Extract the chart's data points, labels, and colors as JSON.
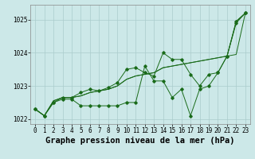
{
  "title": "Graphe pression niveau de la mer (hPa)",
  "background_color": "#cce8e8",
  "plot_bg_color": "#cce8e8",
  "grid_color": "#aacccc",
  "line_color": "#1a6b1a",
  "x_values": [
    0,
    1,
    2,
    3,
    4,
    5,
    6,
    7,
    8,
    9,
    10,
    11,
    12,
    13,
    14,
    15,
    16,
    17,
    18,
    19,
    20,
    21,
    22,
    23
  ],
  "line1": [
    1022.3,
    1022.1,
    1022.5,
    1022.6,
    1022.6,
    1022.4,
    1022.4,
    1022.4,
    1022.4,
    1022.4,
    1022.5,
    1022.5,
    1023.6,
    1023.15,
    1023.15,
    1022.65,
    1022.9,
    1022.1,
    1022.9,
    1023.0,
    1023.4,
    1023.9,
    1024.95,
    1025.2
  ],
  "line2": [
    1022.3,
    1022.1,
    1022.5,
    1022.65,
    1022.65,
    1022.8,
    1022.9,
    1022.85,
    1022.95,
    1023.1,
    1023.5,
    1023.55,
    1023.4,
    1023.3,
    1024.0,
    1023.8,
    1023.8,
    1023.35,
    1023.0,
    1023.35,
    1023.4,
    1023.9,
    1024.9,
    1025.2
  ],
  "line3": [
    1022.3,
    1022.1,
    1022.55,
    1022.65,
    1022.65,
    1022.7,
    1022.8,
    1022.85,
    1022.9,
    1023.0,
    1023.2,
    1023.3,
    1023.35,
    1023.4,
    1023.55,
    1023.6,
    1023.65,
    1023.7,
    1023.75,
    1023.8,
    1023.85,
    1023.9,
    1023.95,
    1025.2
  ],
  "line4": [
    1022.3,
    1022.1,
    1022.55,
    1022.65,
    1022.65,
    1022.7,
    1022.8,
    1022.85,
    1022.9,
    1023.0,
    1023.2,
    1023.3,
    1023.35,
    1023.4,
    1023.55,
    1023.6,
    1023.65,
    1023.7,
    1023.75,
    1023.8,
    1023.85,
    1023.9,
    1024.95,
    1025.2
  ],
  "ylim": [
    1021.85,
    1025.45
  ],
  "yticks": [
    1022,
    1023,
    1024,
    1025
  ],
  "xlim": [
    -0.5,
    23.5
  ],
  "title_fontsize": 7.5,
  "tick_fontsize": 5.5
}
